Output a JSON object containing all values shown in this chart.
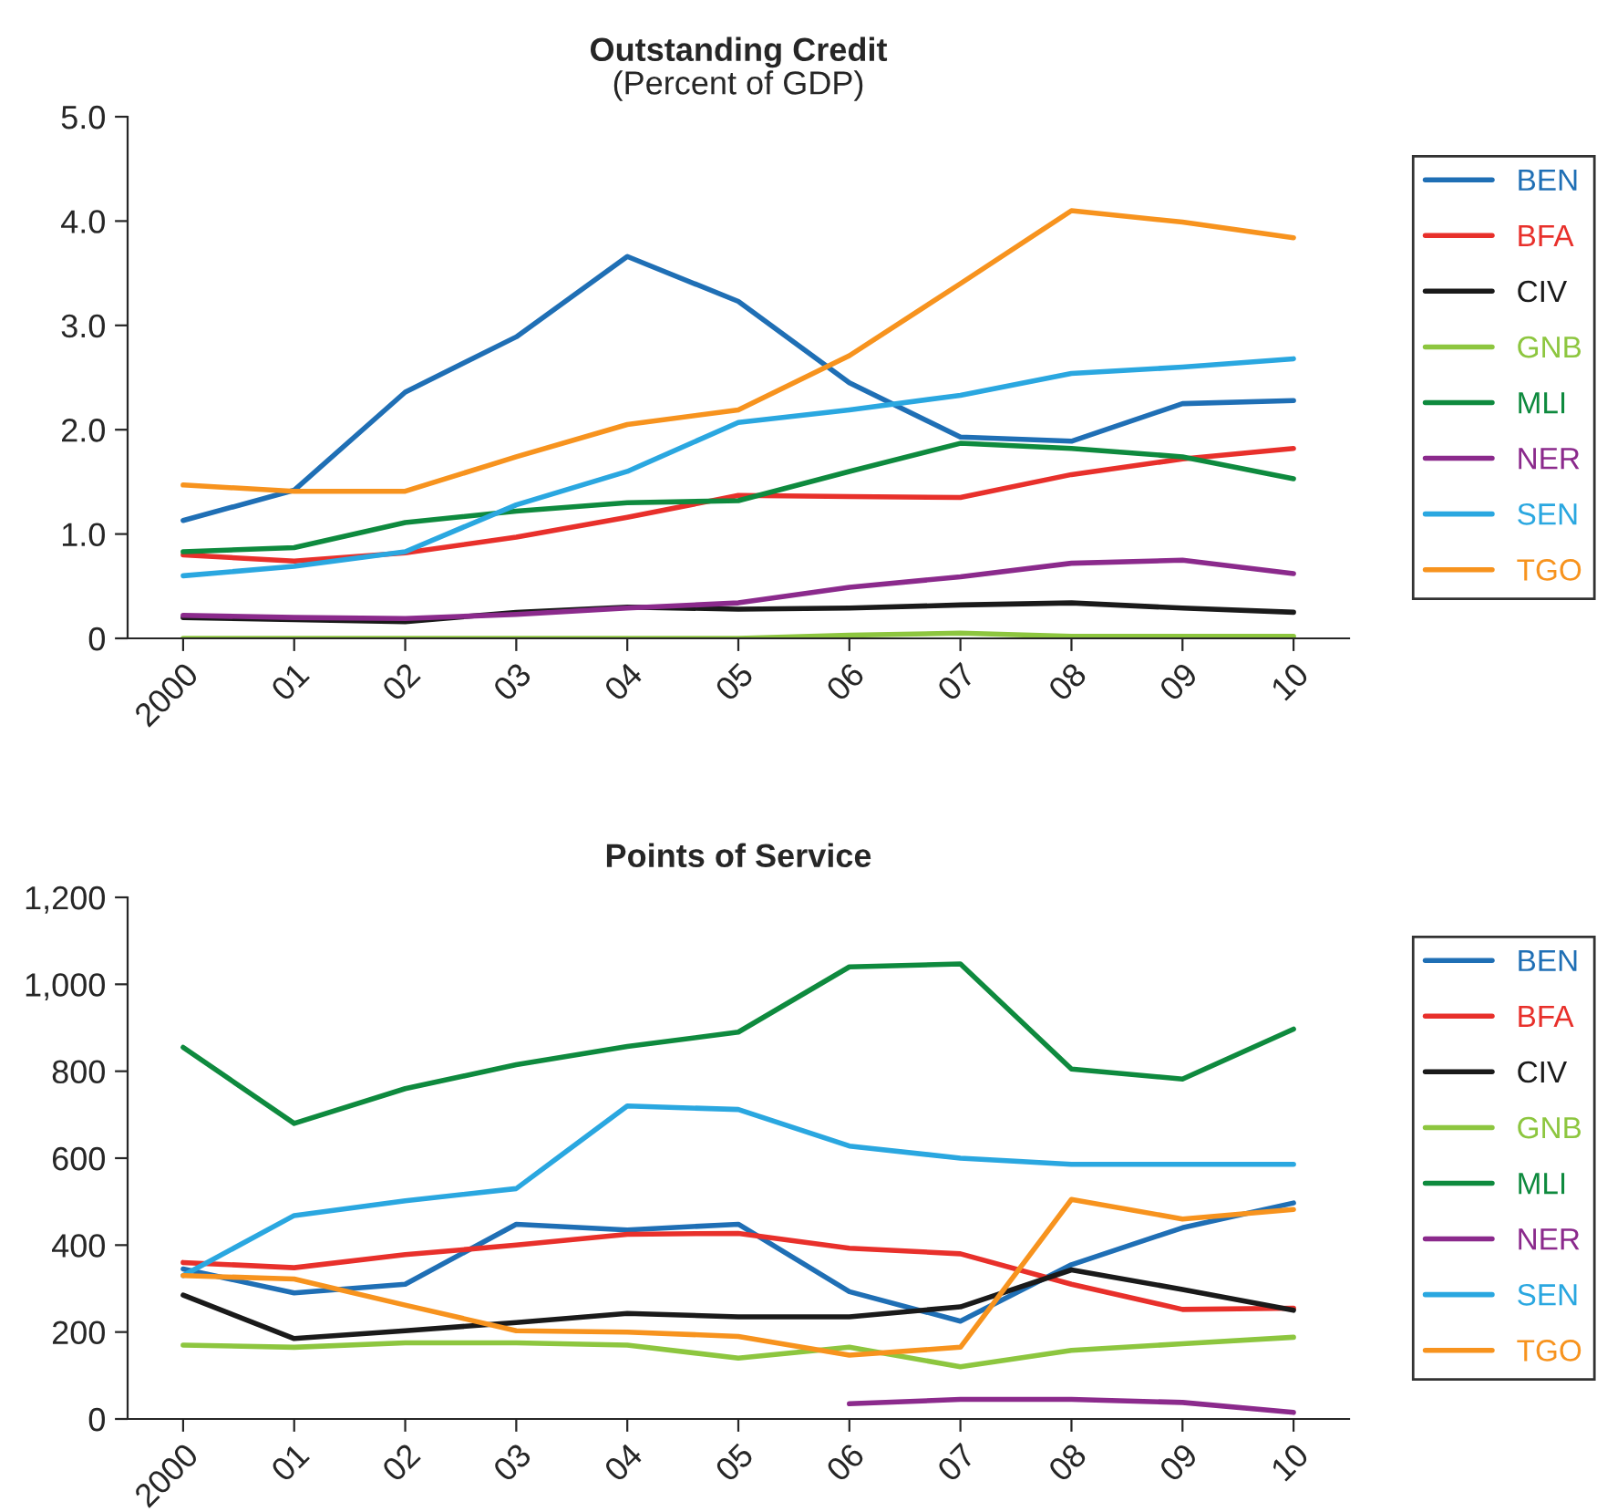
{
  "chart_data": [
    {
      "type": "line",
      "title": "Outstanding Credit",
      "subtitle": "(Percent of GDP)",
      "categories": [
        "2000",
        "01",
        "02",
        "03",
        "04",
        "05",
        "06",
        "07",
        "08",
        "09",
        "10"
      ],
      "ylim": [
        0,
        5
      ],
      "yticks": [
        {
          "value": 0,
          "label": "0"
        },
        {
          "value": 1,
          "label": "1.0"
        },
        {
          "value": 2,
          "label": "2.0"
        },
        {
          "value": 3,
          "label": "3.0"
        },
        {
          "value": 4,
          "label": "4.0"
        },
        {
          "value": 5,
          "label": "5.0"
        }
      ],
      "grid": false,
      "legend": "right",
      "series": [
        {
          "name": "BEN",
          "color": "#1f6fb5",
          "values": [
            1.13,
            1.42,
            2.36,
            2.89,
            3.66,
            3.23,
            2.45,
            1.93,
            1.89,
            2.25,
            2.28
          ]
        },
        {
          "name": "BFA",
          "color": "#e8302b",
          "values": [
            0.8,
            0.74,
            0.82,
            0.97,
            1.16,
            1.37,
            1.36,
            1.35,
            1.57,
            1.72,
            1.82
          ]
        },
        {
          "name": "CIV",
          "color": "#1a1a1a",
          "values": [
            0.2,
            0.18,
            0.16,
            0.25,
            0.3,
            0.28,
            0.29,
            0.32,
            0.34,
            0.29,
            0.25
          ]
        },
        {
          "name": "GNB",
          "color": "#8dc63f",
          "values": [
            0,
            0,
            0,
            0,
            0,
            0,
            0.03,
            0.05,
            0.02,
            0.02,
            0.02
          ]
        },
        {
          "name": "MLI",
          "color": "#0e8a3e",
          "values": [
            0.83,
            0.87,
            1.11,
            1.22,
            1.3,
            1.32,
            1.6,
            1.87,
            1.82,
            1.74,
            1.53
          ]
        },
        {
          "name": "NER",
          "color": "#8b2a8c",
          "values": [
            0.22,
            0.2,
            0.19,
            0.23,
            0.29,
            0.34,
            0.49,
            0.59,
            0.72,
            0.75,
            0.62
          ]
        },
        {
          "name": "SEN",
          "color": "#2aa7e0",
          "values": [
            0.6,
            0.69,
            0.83,
            1.28,
            1.6,
            2.07,
            2.19,
            2.33,
            2.54,
            2.6,
            2.68
          ]
        },
        {
          "name": "TGO",
          "color": "#f7931e",
          "values": [
            1.47,
            1.41,
            1.41,
            1.74,
            2.05,
            2.19,
            2.71,
            3.4,
            4.1,
            3.99,
            3.84
          ]
        }
      ]
    },
    {
      "type": "line",
      "title": "Points of Service",
      "categories": [
        "2000",
        "01",
        "02",
        "03",
        "04",
        "05",
        "06",
        "07",
        "08",
        "09",
        "10"
      ],
      "ylim": [
        0,
        1200
      ],
      "yticks": [
        0,
        200,
        400,
        600,
        800,
        {
          "value": 1000,
          "label": "1,000"
        },
        {
          "value": 1200,
          "label": "1,200"
        }
      ],
      "grid": false,
      "legend": "right",
      "series": [
        {
          "name": "BEN",
          "color": "#1f6fb5",
          "values": [
            345,
            290,
            310,
            448,
            435,
            448,
            293,
            225,
            355,
            440,
            497
          ]
        },
        {
          "name": "BFA",
          "color": "#e8302b",
          "values": [
            360,
            348,
            378,
            400,
            425,
            427,
            393,
            380,
            310,
            252,
            255
          ]
        },
        {
          "name": "CIV",
          "color": "#1a1a1a",
          "values": [
            285,
            185,
            203,
            222,
            243,
            235,
            235,
            258,
            343,
            298,
            250
          ]
        },
        {
          "name": "GNB",
          "color": "#8dc63f",
          "values": [
            170,
            165,
            175,
            175,
            170,
            140,
            165,
            120,
            158,
            173,
            188
          ]
        },
        {
          "name": "MLI",
          "color": "#0e8a3e",
          "values": [
            855,
            680,
            760,
            815,
            857,
            890,
            1040,
            1047,
            805,
            782,
            897
          ]
        },
        {
          "name": "NER",
          "color": "#8b2a8c",
          "values": [
            null,
            null,
            null,
            null,
            null,
            null,
            35,
            45,
            45,
            38,
            15
          ]
        },
        {
          "name": "SEN",
          "color": "#2aa7e0",
          "values": [
            330,
            468,
            502,
            530,
            720,
            712,
            628,
            600,
            586,
            586,
            586
          ]
        },
        {
          "name": "TGO",
          "color": "#f7931e",
          "values": [
            330,
            322,
            262,
            203,
            200,
            190,
            147,
            165,
            505,
            460,
            482
          ]
        }
      ]
    }
  ]
}
